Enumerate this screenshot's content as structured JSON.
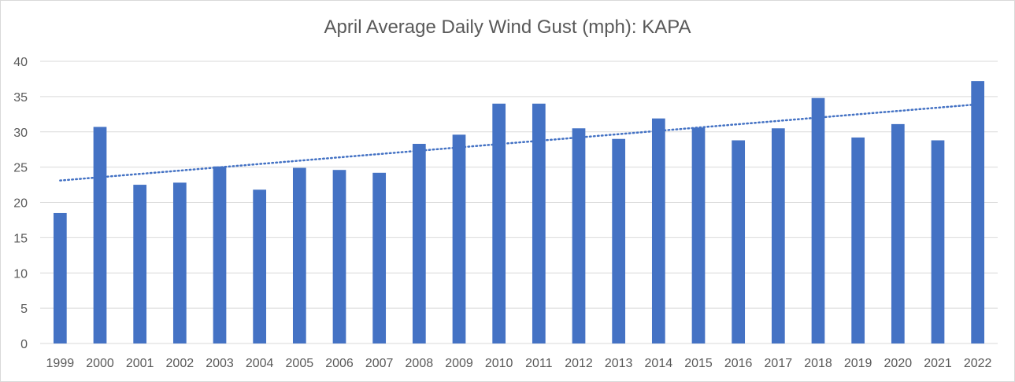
{
  "chart_data": {
    "type": "bar",
    "title": "April Average Daily Wind Gust (mph): KAPA",
    "xlabel": "",
    "ylabel": "",
    "categories": [
      "1999",
      "2000",
      "2001",
      "2002",
      "2003",
      "2004",
      "2005",
      "2006",
      "2007",
      "2008",
      "2009",
      "2010",
      "2011",
      "2012",
      "2013",
      "2014",
      "2015",
      "2016",
      "2017",
      "2018",
      "2019",
      "2020",
      "2021",
      "2022"
    ],
    "series": [
      {
        "values": [
          18.5,
          30.7,
          22.5,
          22.8,
          25.1,
          21.8,
          24.9,
          24.6,
          24.2,
          28.3,
          29.6,
          34.0,
          34.0,
          30.5,
          29.0,
          31.9,
          30.6,
          28.8,
          30.5,
          34.8,
          29.2,
          31.1,
          28.8,
          37.2
        ],
        "color": "#4472c4"
      }
    ],
    "trendline": {
      "type": "linear",
      "style": "dotted",
      "color": "#4472c4",
      "start_value": 23.1,
      "end_value": 33.9
    },
    "ylim": [
      0,
      40
    ],
    "yticks": [
      0,
      5,
      10,
      15,
      20,
      25,
      30,
      35,
      40
    ],
    "grid": true,
    "legend": "none"
  }
}
